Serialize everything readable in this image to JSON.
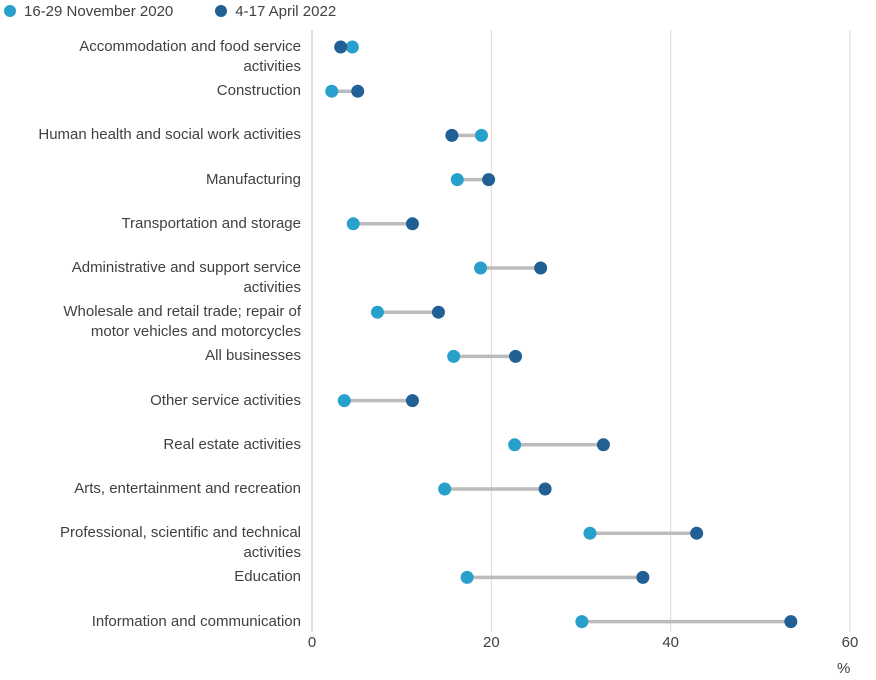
{
  "chart_data": {
    "type": "dumbbell",
    "legend": [
      {
        "name": "16-29 November 2020",
        "color": "#27a0cc"
      },
      {
        "name": "4-17 April 2022",
        "color": "#206095"
      }
    ],
    "categories": [
      [
        "Accommodation and food service",
        "activities"
      ],
      [
        "Construction"
      ],
      [
        "Human health and social work activities"
      ],
      [
        "Manufacturing"
      ],
      [
        "Transportation and storage"
      ],
      [
        "Administrative and support service",
        "activities"
      ],
      [
        "Wholesale and retail trade; repair of",
        "motor vehicles and motorcycles"
      ],
      [
        "All businesses"
      ],
      [
        "Other service activities"
      ],
      [
        "Real estate activities"
      ],
      [
        "Arts, entertainment and recreation"
      ],
      [
        "Professional, scientific and technical",
        "activities"
      ],
      [
        "Education"
      ],
      [
        "Information and communication"
      ]
    ],
    "series": [
      {
        "name": "16-29 November 2020",
        "values": [
          4.5,
          2.2,
          18.9,
          16.2,
          4.6,
          18.8,
          7.3,
          15.8,
          3.6,
          22.6,
          14.8,
          31.0,
          17.3,
          30.1
        ]
      },
      {
        "name": "4-17 April 2022",
        "values": [
          3.2,
          5.1,
          15.6,
          19.7,
          11.2,
          25.5,
          14.1,
          22.7,
          11.2,
          32.5,
          26.0,
          42.9,
          36.9,
          53.4
        ]
      }
    ],
    "x_ticks": [
      "0",
      "20",
      "40",
      "60"
    ],
    "xlim": [
      0,
      60
    ],
    "x_unit": "%",
    "gridlines": true,
    "legend_position": "top-left"
  }
}
